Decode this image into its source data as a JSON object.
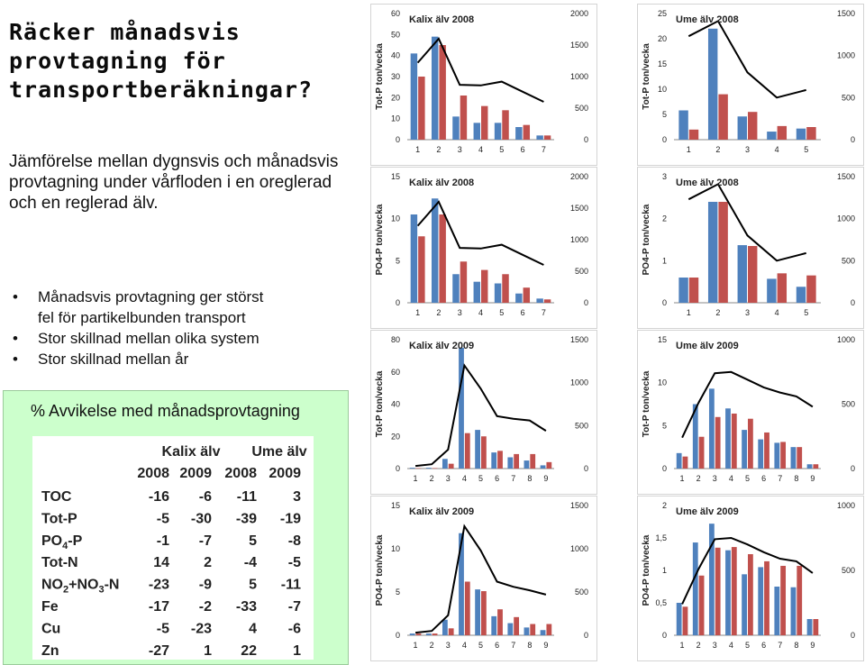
{
  "page": {
    "title": "Räcker månadsvis provtagning för transportberäkningar?",
    "intro": "Jämförelse mellan dygnsvis och månadsvis provtagning under vårfloden i en oreglerad och en reglerad älv.",
    "bullets": [
      "Månadsvis provtagning ger störst",
      "fel för partikelbunden transport",
      "Stor skillnad mellan olika system",
      "Stor skillnad mellan år"
    ]
  },
  "deviation_table": {
    "caption": "% Avvikelse med månadsprovtagning",
    "group_headers": [
      "Kalix älv",
      "Ume älv"
    ],
    "year_headers": [
      "2008",
      "2009",
      "2008",
      "2009"
    ],
    "rows": [
      {
        "label": "TOC",
        "values": [
          "-16",
          "-6",
          "-11",
          "3"
        ]
      },
      {
        "label": "Tot-P",
        "values": [
          "-5",
          "-30",
          "-39",
          "-19"
        ]
      },
      {
        "label": "PO4-P",
        "values": [
          "-1",
          "-7",
          "5",
          "-8"
        ]
      },
      {
        "label": "Tot-N",
        "values": [
          "14",
          "2",
          "-4",
          "-5"
        ]
      },
      {
        "label": "NO2+NO3-N",
        "values": [
          "-23",
          "-9",
          "5",
          "-11"
        ]
      },
      {
        "label": "Fe",
        "values": [
          "-17",
          "-2",
          "-33",
          "-7"
        ]
      },
      {
        "label": "Cu",
        "values": [
          "-5",
          "-23",
          "4",
          "-6"
        ]
      },
      {
        "label": "Zn",
        "values": [
          "-27",
          "1",
          "22",
          "1"
        ]
      }
    ]
  },
  "colors": {
    "blue": "#4f81bd",
    "red": "#c0504d",
    "line": "#000000",
    "box": "#ccffcc"
  },
  "chart_data": [
    {
      "type": "bar",
      "title": "Kalix älv 2008",
      "ylabel": "Tot-P ton/vecka",
      "ylim": [
        0,
        60
      ],
      "yticks": [
        0,
        10,
        20,
        30,
        40,
        50,
        60
      ],
      "y2lim": [
        0,
        2000
      ],
      "y2ticks": [
        0,
        500,
        1000,
        1500,
        2000
      ],
      "categories": [
        "1",
        "2",
        "3",
        "4",
        "5",
        "6",
        "7"
      ],
      "series": [
        {
          "values": [
            41,
            49,
            11,
            8,
            8,
            6,
            2
          ]
        },
        {
          "values": [
            30,
            45,
            21,
            16,
            14,
            7,
            2
          ]
        },
        {
          "axis": "right",
          "values": [
            1220,
            1600,
            870,
            860,
            920,
            760,
            600
          ]
        }
      ]
    },
    {
      "type": "bar",
      "title": "Ume älv 2008",
      "ylabel": "Tot-P ton/vecka",
      "ylim": [
        0,
        25
      ],
      "yticks": [
        0,
        5,
        10,
        15,
        20,
        25
      ],
      "y2lim": [
        0,
        1500
      ],
      "y2ticks": [
        0,
        500,
        1000,
        1500
      ],
      "categories": [
        "1",
        "2",
        "3",
        "4",
        "5"
      ],
      "series": [
        {
          "values": [
            5.8,
            22,
            4.6,
            1.6,
            2.2
          ]
        },
        {
          "values": [
            2,
            9,
            5.5,
            2.7,
            2.5
          ]
        },
        {
          "axis": "right",
          "values": [
            1230,
            1410,
            800,
            500,
            590
          ]
        }
      ]
    },
    {
      "type": "bar",
      "title": "Kalix älv 2008",
      "ylabel": "PO4-P ton/vecka",
      "ylim": [
        0,
        15
      ],
      "yticks": [
        0,
        5,
        10,
        15
      ],
      "y2lim": [
        0,
        2000
      ],
      "y2ticks": [
        0,
        500,
        1000,
        1500,
        2000
      ],
      "categories": [
        "1",
        "2",
        "3",
        "4",
        "5",
        "6",
        "7"
      ],
      "series": [
        {
          "values": [
            10.5,
            12.4,
            3.4,
            2.5,
            2.3,
            1.1,
            0.5
          ]
        },
        {
          "values": [
            7.9,
            10.5,
            4.9,
            3.9,
            3.4,
            1.8,
            0.4
          ]
        },
        {
          "axis": "right",
          "values": [
            1220,
            1600,
            870,
            860,
            920,
            760,
            600
          ]
        }
      ]
    },
    {
      "type": "bar",
      "title": "Ume älv 2008",
      "ylabel": "PO4-P ton/vecka",
      "ylim": [
        0,
        3
      ],
      "yticks": [
        0,
        1,
        2,
        3
      ],
      "y2lim": [
        0,
        1500
      ],
      "y2ticks": [
        0,
        500,
        1000,
        1500
      ],
      "categories": [
        "1",
        "2",
        "3",
        "4",
        "5"
      ],
      "series": [
        {
          "values": [
            0.6,
            2.4,
            1.37,
            0.57,
            0.38
          ]
        },
        {
          "values": [
            0.6,
            2.4,
            1.35,
            0.7,
            0.65
          ]
        },
        {
          "axis": "right",
          "values": [
            1230,
            1410,
            800,
            500,
            590
          ]
        }
      ]
    },
    {
      "type": "bar",
      "title": "Kalix älv 2009",
      "ylabel": "Tot-P ton/vecka",
      "ylim": [
        0,
        80
      ],
      "yticks": [
        0,
        20,
        40,
        60,
        80
      ],
      "y2lim": [
        0,
        1500
      ],
      "y2ticks": [
        0,
        500,
        1000,
        1500
      ],
      "categories": [
        "1",
        "2",
        "3",
        "4",
        "5",
        "6",
        "7",
        "8",
        "9"
      ],
      "series": [
        {
          "values": [
            0.5,
            0.5,
            6,
            75,
            24,
            10,
            7,
            5,
            2
          ]
        },
        {
          "values": [
            0.3,
            0.3,
            3,
            22,
            20,
            11,
            9,
            9,
            4
          ]
        },
        {
          "axis": "right",
          "values": [
            30,
            50,
            220,
            1200,
            930,
            610,
            580,
            560,
            440
          ]
        }
      ]
    },
    {
      "type": "bar",
      "title": "Ume älv 2009",
      "ylabel": "Tot-P ton/vecka",
      "ylim": [
        0,
        15
      ],
      "yticks": [
        0,
        5,
        10,
        15
      ],
      "y2lim": [
        0,
        1000
      ],
      "y2ticks": [
        0,
        500,
        1000
      ],
      "categories": [
        "1",
        "2",
        "3",
        "4",
        "5",
        "6",
        "7",
        "8",
        "9"
      ],
      "series": [
        {
          "values": [
            1.8,
            7.5,
            9.3,
            7,
            4.5,
            3.4,
            3,
            2.5,
            0.5
          ]
        },
        {
          "values": [
            1.4,
            3.7,
            6,
            6.4,
            5.8,
            4.2,
            3.1,
            2.5,
            0.5
          ]
        },
        {
          "axis": "right",
          "values": [
            240,
            510,
            740,
            750,
            690,
            630,
            590,
            560,
            480
          ]
        }
      ]
    },
    {
      "type": "bar",
      "title": "Kalix älv 2009",
      "ylabel": "PO4-P ton/vecka",
      "ylim": [
        0,
        15
      ],
      "yticks": [
        0,
        5,
        10,
        15
      ],
      "y2lim": [
        0,
        1500
      ],
      "y2ticks": [
        0,
        500,
        1000,
        1500
      ],
      "categories": [
        "1",
        "2",
        "3",
        "4",
        "5",
        "6",
        "7",
        "8",
        "9"
      ],
      "series": [
        {
          "values": [
            0.2,
            0.2,
            1.8,
            11.8,
            5.3,
            2.2,
            1.4,
            0.9,
            0.6
          ]
        },
        {
          "values": [
            0.2,
            0.2,
            0.8,
            6.2,
            5.1,
            3,
            2.1,
            1.3,
            1.3
          ]
        },
        {
          "axis": "right",
          "values": [
            30,
            50,
            230,
            1260,
            980,
            620,
            560,
            520,
            470
          ]
        }
      ]
    },
    {
      "type": "bar",
      "title": "Ume älv 2009",
      "ylabel": "PO4-P ton/vecka",
      "ylim": [
        0,
        2
      ],
      "yticks": [
        0,
        0.5,
        1,
        1.5,
        2
      ],
      "ytick_labels": [
        "0",
        "0,5",
        "1",
        "1,5",
        "2"
      ],
      "y2lim": [
        0,
        1000
      ],
      "y2ticks": [
        0,
        500,
        1000
      ],
      "categories": [
        "1",
        "2",
        "3",
        "4",
        "5",
        "6",
        "7",
        "8",
        "9"
      ],
      "series": [
        {
          "values": [
            0.5,
            1.43,
            1.72,
            1.31,
            0.94,
            1.05,
            0.75,
            0.74,
            0.25
          ]
        },
        {
          "values": [
            0.44,
            0.92,
            1.35,
            1.36,
            1.25,
            1.14,
            1.07,
            1.07,
            0.25
          ]
        },
        {
          "axis": "right",
          "values": [
            240,
            510,
            740,
            750,
            700,
            640,
            590,
            570,
            480
          ]
        }
      ]
    }
  ]
}
